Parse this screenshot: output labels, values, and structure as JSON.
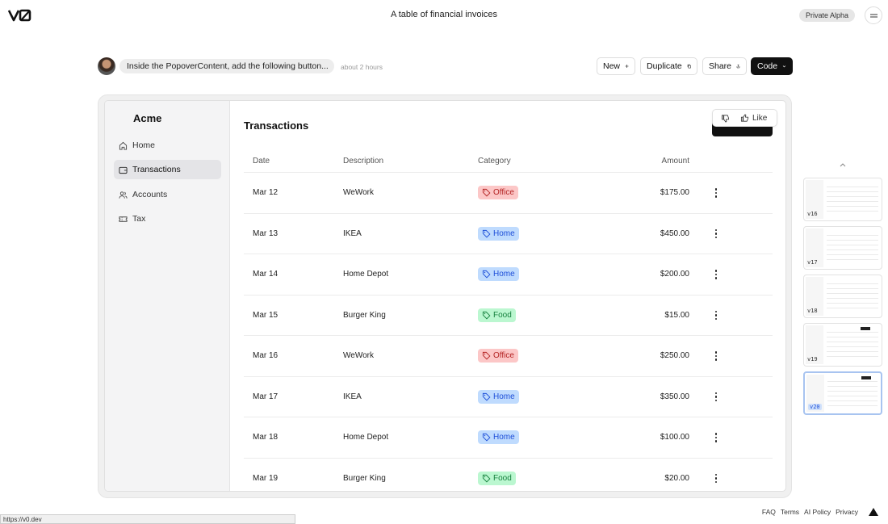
{
  "header": {
    "logo": "v0-logo",
    "title": "A table of financial invoices",
    "badge": "Private Alpha",
    "menu_icon": "menu-icon"
  },
  "prompt": {
    "text": "Inside the PopoverContent, add the following button...",
    "time": "about 2 hours"
  },
  "toolbar": {
    "new_label": "New",
    "duplicate_label": "Duplicate",
    "share_label": "Share",
    "code_label": "Code"
  },
  "app": {
    "brand": "Acme",
    "nav": [
      {
        "label": "Home",
        "icon": "home-icon"
      },
      {
        "label": "Transactions",
        "icon": "wallet-icon"
      },
      {
        "label": "Accounts",
        "icon": "users-icon"
      },
      {
        "label": "Tax",
        "icon": "ticket-icon"
      }
    ],
    "title": "Transactions",
    "feedback": {
      "like_label": "Like"
    },
    "columns": {
      "date": "Date",
      "description": "Description",
      "category": "Category",
      "amount": "Amount"
    },
    "rows": [
      {
        "date": "Mar 12",
        "description": "WeWork",
        "category": "Office",
        "amount": "$175.00"
      },
      {
        "date": "Mar 13",
        "description": "IKEA",
        "category": "Home",
        "amount": "$450.00"
      },
      {
        "date": "Mar 14",
        "description": "Home Depot",
        "category": "Home",
        "amount": "$200.00"
      },
      {
        "date": "Mar 15",
        "description": "Burger King",
        "category": "Food",
        "amount": "$15.00"
      },
      {
        "date": "Mar 16",
        "description": "WeWork",
        "category": "Office",
        "amount": "$250.00"
      },
      {
        "date": "Mar 17",
        "description": "IKEA",
        "category": "Home",
        "amount": "$350.00"
      },
      {
        "date": "Mar 18",
        "description": "Home Depot",
        "category": "Home",
        "amount": "$100.00"
      },
      {
        "date": "Mar 19",
        "description": "Burger King",
        "category": "Food",
        "amount": "$20.00"
      }
    ],
    "category_colors": {
      "Office": {
        "bg": "#fcc7c7",
        "fg": "#b42323"
      },
      "Home": {
        "bg": "#bfdbfe",
        "fg": "#1d4ed8"
      },
      "Food": {
        "bg": "#bbf7d0",
        "fg": "#15803d"
      }
    }
  },
  "versions": [
    {
      "label": "v16",
      "active": false
    },
    {
      "label": "v17",
      "active": false
    },
    {
      "label": "v18",
      "active": false
    },
    {
      "label": "v19",
      "active": false
    },
    {
      "label": "v20",
      "active": true
    }
  ],
  "status_url": "https://v0.dev",
  "footer": [
    "FAQ",
    "Terms",
    "AI Policy",
    "Privacy"
  ]
}
